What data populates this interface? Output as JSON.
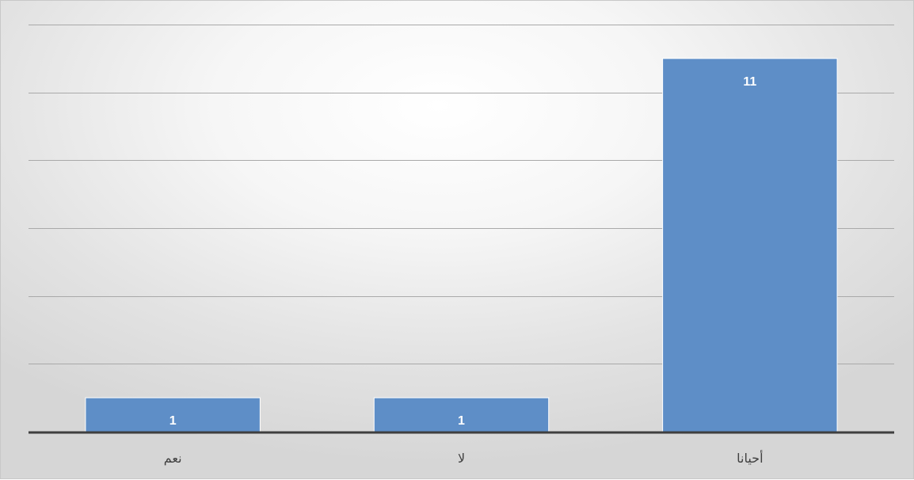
{
  "chart_data": {
    "type": "bar",
    "categories": [
      "نعم",
      "لا",
      "أحيانا"
    ],
    "values": [
      1,
      1,
      11
    ],
    "data_labels": [
      "1",
      "1",
      "11"
    ],
    "title": "",
    "xlabel": "",
    "ylabel": "",
    "ylim": [
      0,
      12
    ],
    "grid": true,
    "legend": "none",
    "colors": {
      "bar": "#5e8ec7",
      "bar_edge": "#ffffff",
      "gridline": "#a9a9a9",
      "axis": "#3f3f3f",
      "label": "#404040",
      "data_label": "#ffffff"
    }
  }
}
